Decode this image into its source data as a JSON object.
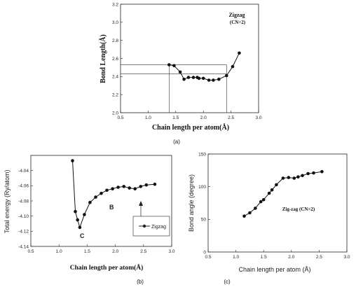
{
  "chart_data": [
    {
      "type": "line",
      "panel_label": "(a)",
      "xlabel": "Chain length per atom(Å)",
      "ylabel": "Bond Length(Å)",
      "xlim": [
        0.5,
        3.0
      ],
      "ylim": [
        2.0,
        3.2
      ],
      "xticks": [
        "0.5",
        "1.0",
        "1.5",
        "2.0",
        "2.5",
        "3.0"
      ],
      "yticks": [
        "2.0",
        "2.2",
        "2.4",
        "2.6",
        "2.8",
        "3.0",
        "3.2"
      ],
      "annotation": "Zigzag\n(CN=2)",
      "reference_lines": {
        "y": [
          2.53,
          2.43
        ],
        "x": [
          1.38,
          2.42
        ]
      },
      "series": [
        {
          "x": [
            1.38,
            1.47,
            1.58,
            1.65,
            1.73,
            1.82,
            1.89,
            1.92,
            2.0,
            2.1,
            2.18,
            2.28,
            2.42,
            2.53,
            2.65
          ],
          "y": [
            2.53,
            2.52,
            2.45,
            2.37,
            2.39,
            2.39,
            2.39,
            2.38,
            2.38,
            2.36,
            2.36,
            2.37,
            2.41,
            2.51,
            2.66
          ]
        }
      ]
    },
    {
      "type": "line",
      "panel_label": "(b)",
      "xlabel": "Chain length per atom(Å)",
      "ylabel": "Total energy (Ry/atom)",
      "xlim": [
        0.5,
        3.0
      ],
      "ylim": [
        -4.14,
        -4.02
      ],
      "xticks": [
        "0.5",
        "1.0",
        "1.5",
        "2.0",
        "2.5",
        "3.0"
      ],
      "yticks": [
        "-4.04",
        "-4.06",
        "-4.08",
        "-4.10",
        "-4.12",
        "-4.14"
      ],
      "point_labels": [
        "B",
        "C"
      ],
      "legend": "Zigzag",
      "series": [
        {
          "name": "Zigzag",
          "x": [
            1.24,
            1.29,
            1.33,
            1.37,
            1.45,
            1.55,
            1.65,
            1.75,
            1.85,
            1.95,
            2.05,
            2.15,
            2.25,
            2.35,
            2.45,
            2.55,
            2.7
          ],
          "y": [
            -4.027,
            -4.094,
            -4.105,
            -4.115,
            -4.098,
            -4.082,
            -4.075,
            -4.07,
            -4.066,
            -4.064,
            -4.062,
            -4.061,
            -4.063,
            -4.064,
            -4.061,
            -4.059,
            -4.058
          ]
        }
      ]
    },
    {
      "type": "line",
      "panel_label": "(c)",
      "xlabel": "Chain length per atom (Å)",
      "ylabel": "Bond angle (degree)",
      "xlim": [
        0.5,
        3.0
      ],
      "ylim": [
        0,
        150
      ],
      "xticks": [
        "0.5",
        "1.0",
        "1.5",
        "2.0",
        "2.5",
        "3.0"
      ],
      "yticks": [
        "0",
        "50",
        "100",
        "150"
      ],
      "annotation": "Zig-zag (CN=2)",
      "series": [
        {
          "x": [
            1.15,
            1.25,
            1.35,
            1.45,
            1.5,
            1.6,
            1.65,
            1.73,
            1.85,
            1.95,
            2.05,
            2.12,
            2.2,
            2.3,
            2.4,
            2.55
          ],
          "y": [
            55,
            60,
            67,
            77,
            80,
            90,
            95,
            103,
            113,
            114,
            113,
            115,
            117,
            120,
            121,
            123
          ]
        }
      ]
    }
  ]
}
